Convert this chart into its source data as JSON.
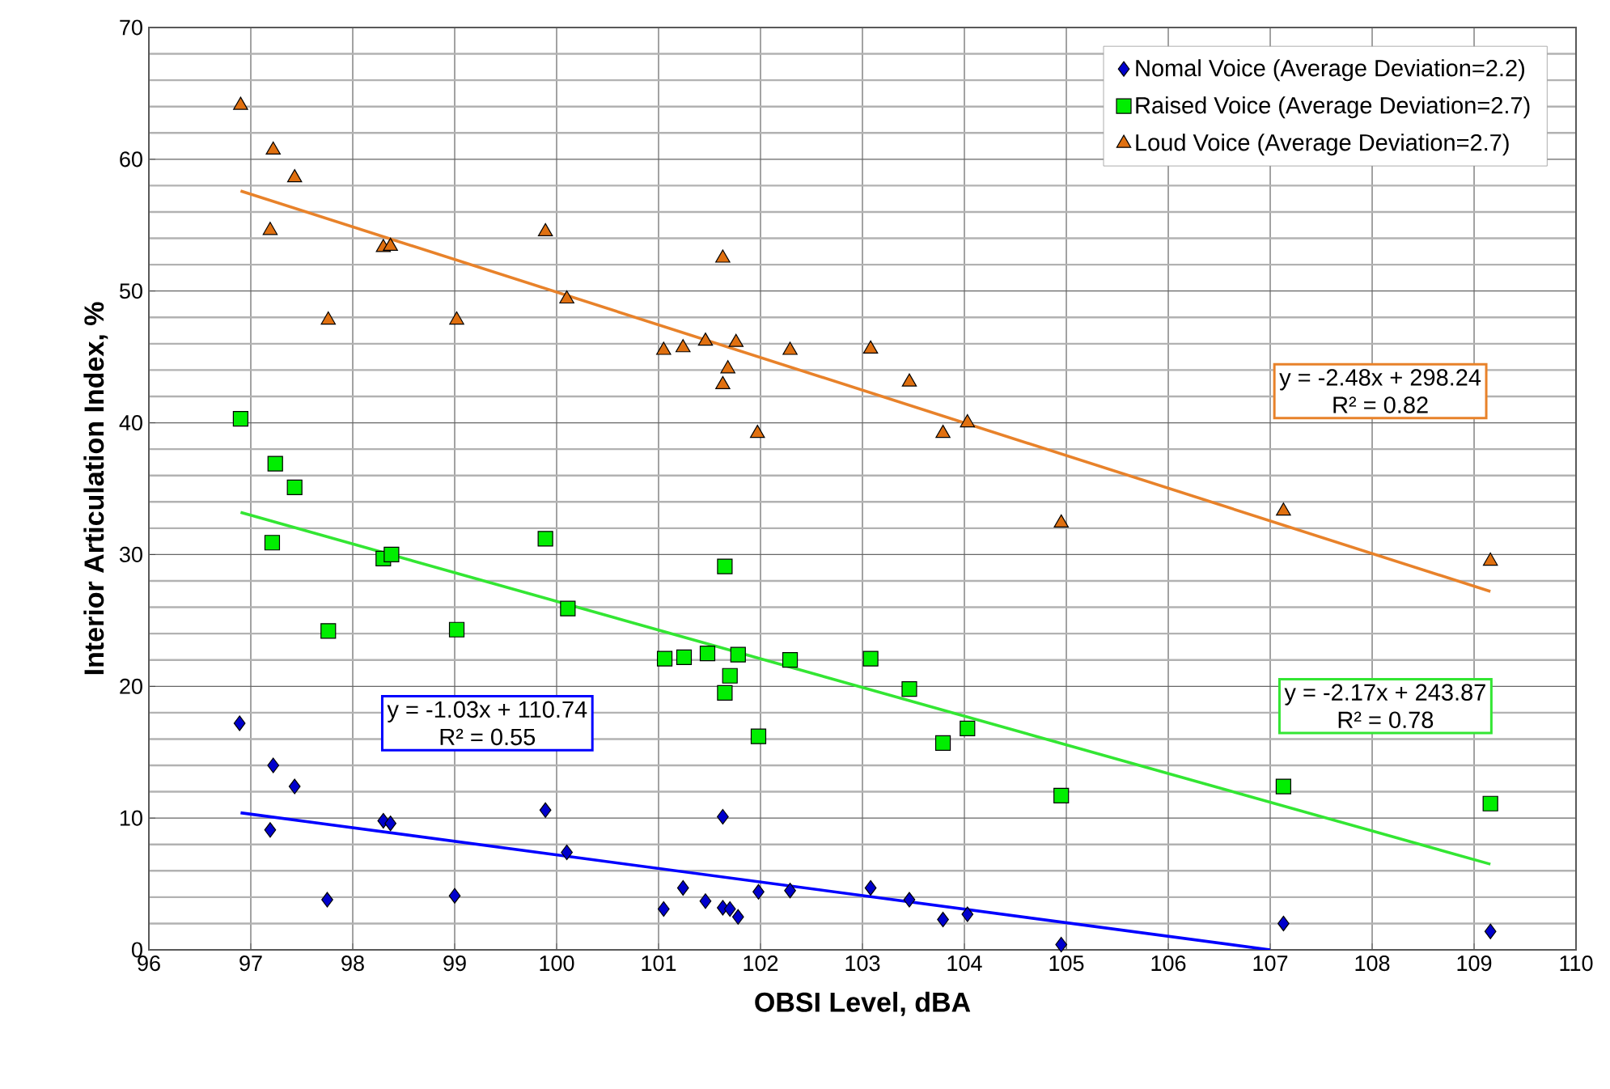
{
  "chart_data": {
    "type": "scatter",
    "xlabel": "OBSI Level, dBA",
    "ylabel": "Interior Articulation Index, %",
    "xlim": [
      96,
      110
    ],
    "xticks": [
      96,
      97,
      98,
      99,
      100,
      101,
      102,
      103,
      104,
      105,
      106,
      107,
      108,
      109,
      110
    ],
    "ylim": [
      0,
      70
    ],
    "yticks": [
      0,
      10,
      20,
      30,
      40,
      50,
      60,
      70
    ],
    "grid": true,
    "legend": "top right",
    "series": [
      {
        "name": "Nomal Voice (Average Deviation=2.2)",
        "color": "#0000cc",
        "marker": "diamond",
        "x": [
          96.89,
          97.22,
          97.43,
          97.19,
          97.75,
          98.3,
          98.37,
          99.0,
          99.89,
          100.1,
          101.05,
          101.24,
          101.46,
          101.63,
          101.63,
          101.7,
          101.78,
          101.98,
          102.29,
          103.08,
          103.46,
          103.79,
          104.03,
          104.95,
          107.13,
          109.16
        ],
        "values": [
          17.2,
          14.0,
          12.4,
          9.1,
          3.8,
          9.8,
          9.6,
          4.1,
          10.6,
          7.4,
          3.1,
          4.7,
          3.7,
          10.1,
          3.2,
          3.1,
          2.5,
          4.4,
          4.5,
          4.7,
          3.8,
          2.3,
          2.7,
          0.4,
          2.0,
          1.4
        ]
      },
      {
        "name": "Raised Voice (Average Deviation=2.7)",
        "color": "#00ee00",
        "marker": "square",
        "x": [
          96.9,
          97.24,
          97.43,
          97.21,
          97.76,
          98.3,
          98.38,
          99.02,
          99.89,
          100.11,
          101.06,
          101.25,
          101.48,
          101.65,
          101.65,
          101.7,
          101.78,
          101.98,
          102.29,
          103.08,
          103.46,
          103.79,
          104.03,
          104.95,
          107.13,
          109.16
        ],
        "values": [
          40.3,
          36.9,
          35.1,
          30.9,
          24.2,
          29.7,
          30.0,
          24.3,
          31.2,
          25.9,
          22.1,
          22.2,
          22.5,
          29.1,
          19.5,
          20.8,
          22.4,
          16.2,
          22.0,
          22.1,
          19.8,
          15.7,
          16.8,
          11.7,
          12.4,
          11.1
        ]
      },
      {
        "name": "Loud Voice (Average Deviation=2.7)",
        "color": "#e07010",
        "marker": "triangle",
        "x": [
          96.9,
          97.22,
          97.43,
          97.19,
          97.76,
          98.3,
          98.37,
          99.02,
          99.89,
          100.1,
          101.05,
          101.24,
          101.46,
          101.63,
          101.63,
          101.68,
          101.76,
          101.97,
          102.29,
          103.08,
          103.46,
          103.79,
          104.03,
          104.95,
          107.13,
          109.16
        ],
        "values": [
          64.1,
          60.7,
          58.6,
          54.6,
          47.8,
          53.3,
          53.4,
          47.8,
          54.5,
          49.4,
          45.5,
          45.7,
          46.2,
          52.5,
          42.9,
          44.1,
          46.1,
          39.2,
          45.5,
          45.6,
          43.1,
          39.2,
          40.0,
          32.4,
          33.3,
          29.5
        ]
      },
      {
        "type": "line",
        "color": "#0000ff",
        "marker": "none",
        "x": [
          96.9,
          107.0
        ],
        "values": [
          10.4,
          0
        ]
      },
      {
        "type": "line",
        "color": "#33e633",
        "marker": "none",
        "x": [
          96.9,
          109.16
        ],
        "values": [
          33.2,
          6.5
        ]
      },
      {
        "type": "line",
        "color": "#e8822a",
        "marker": "none",
        "x": [
          96.9,
          109.16
        ],
        "values": [
          57.6,
          27.2
        ]
      }
    ],
    "annotations": [
      "y = -1.03x + 110.74",
      "R² = 0.55",
      "y = -2.17x + 243.87",
      "R² = 0.78",
      "y = -2.48x + 298.24",
      "R² = 0.82"
    ]
  }
}
